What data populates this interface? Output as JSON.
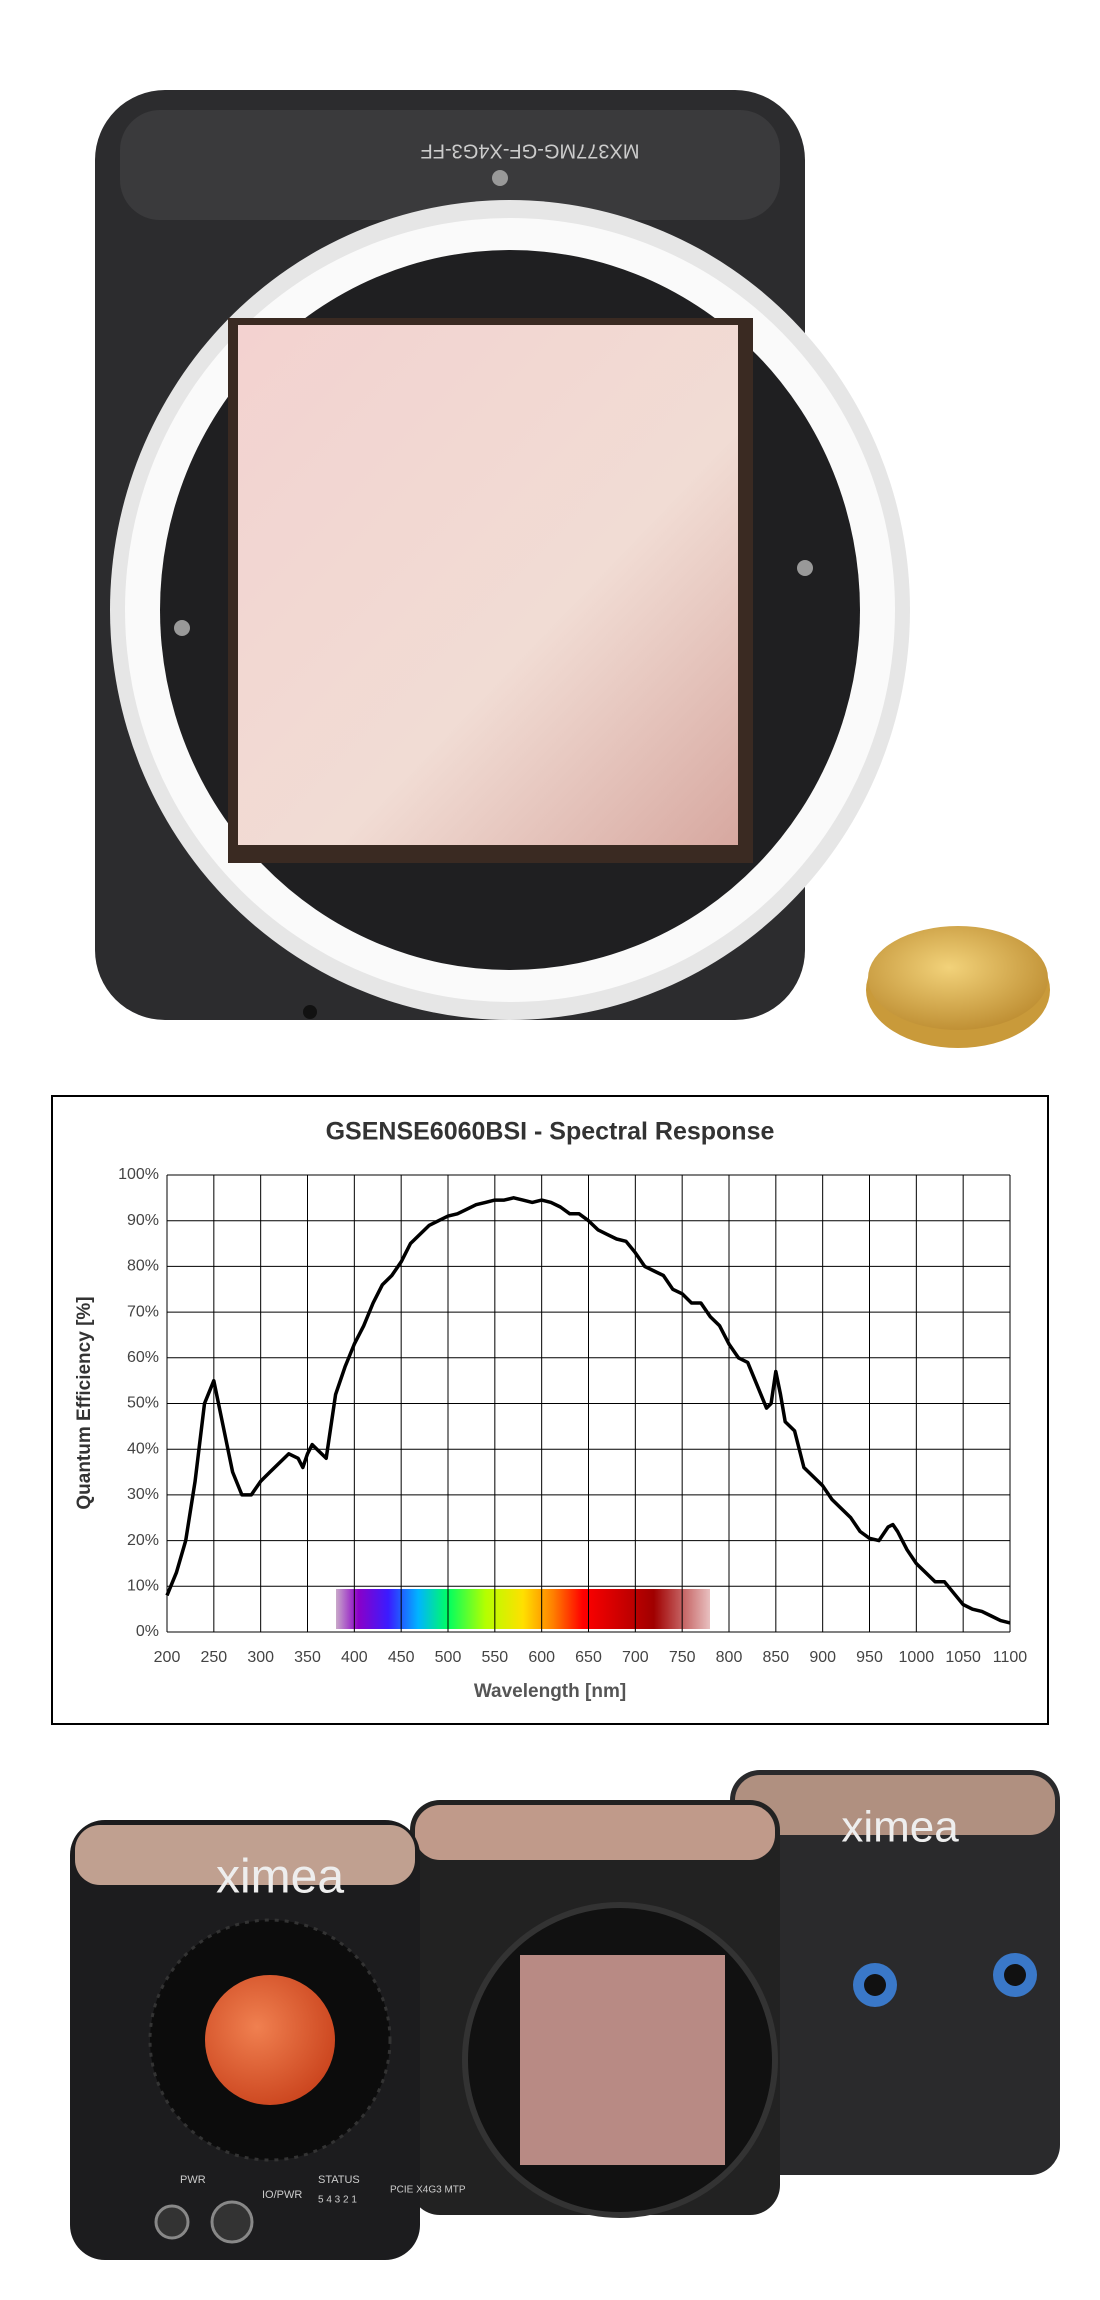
{
  "chart_data": {
    "type": "line",
    "title": "GSENSE6060BSI - Spectral Response",
    "x_label": "Wavelength [nm]",
    "y_label": "Quantum Efficiency [%]",
    "x": [
      200,
      210,
      220,
      230,
      240,
      250,
      260,
      270,
      280,
      290,
      300,
      310,
      320,
      330,
      340,
      345,
      350,
      355,
      360,
      370,
      380,
      390,
      400,
      410,
      420,
      430,
      440,
      450,
      460,
      470,
      480,
      490,
      500,
      510,
      520,
      530,
      540,
      550,
      560,
      570,
      580,
      590,
      600,
      610,
      620,
      630,
      640,
      650,
      660,
      670,
      680,
      690,
      700,
      710,
      720,
      730,
      740,
      750,
      760,
      770,
      780,
      790,
      800,
      810,
      820,
      830,
      840,
      845,
      850,
      855,
      860,
      870,
      880,
      890,
      900,
      910,
      920,
      930,
      940,
      950,
      960,
      970,
      975,
      980,
      990,
      1000,
      1010,
      1020,
      1030,
      1040,
      1050,
      1060,
      1070,
      1080,
      1090,
      1100
    ],
    "values": [
      8,
      13,
      20,
      33,
      50,
      55,
      45,
      35,
      30,
      30,
      33,
      35,
      37,
      39,
      38,
      36,
      39,
      41,
      40,
      38,
      52,
      58,
      63,
      67,
      72,
      76,
      78,
      81,
      85,
      87,
      89,
      90,
      91,
      91.5,
      92.5,
      93.5,
      94,
      94.5,
      94.5,
      95,
      94.5,
      94,
      94.5,
      94,
      93,
      91.5,
      91.5,
      90,
      88,
      87,
      86,
      85.5,
      83,
      80,
      79,
      78,
      75,
      74,
      72,
      72,
      69,
      67,
      63,
      60,
      59,
      54,
      49,
      50,
      57,
      52,
      46,
      44,
      36,
      34,
      32,
      29,
      27,
      25,
      22,
      20.5,
      20,
      23,
      23.5,
      22,
      18,
      15,
      13,
      11,
      11,
      8.5,
      6,
      5,
      4.5,
      3.5,
      2.5,
      2
    ],
    "color": "#000000",
    "xlim": [
      200,
      1100
    ],
    "xticks": [
      200,
      250,
      300,
      350,
      400,
      450,
      500,
      550,
      600,
      650,
      700,
      750,
      800,
      850,
      900,
      950,
      1000,
      1050,
      1100
    ],
    "ylim": [
      0,
      100
    ],
    "yticks": [
      {
        "value": 0,
        "label": "0%"
      },
      {
        "value": 10,
        "label": "10%"
      },
      {
        "value": 20,
        "label": "20%"
      },
      {
        "value": 30,
        "label": "30%"
      },
      {
        "value": 40,
        "label": "40%"
      },
      {
        "value": 50,
        "label": "50%"
      },
      {
        "value": 60,
        "label": "60%"
      },
      {
        "value": 70,
        "label": "70%"
      },
      {
        "value": 80,
        "label": "80%"
      },
      {
        "value": 90,
        "label": "90%"
      },
      {
        "value": 100,
        "label": "100%"
      }
    ],
    "grid": true
  },
  "photo_labels": {
    "logo_left": "ximea",
    "logo_right": "ximea",
    "pwr": "PWR",
    "io_pwr": "IO/PWR",
    "status": "STATUS",
    "leds": "5 4 3 2 1",
    "port": "PCIE X4G3 MTP"
  }
}
